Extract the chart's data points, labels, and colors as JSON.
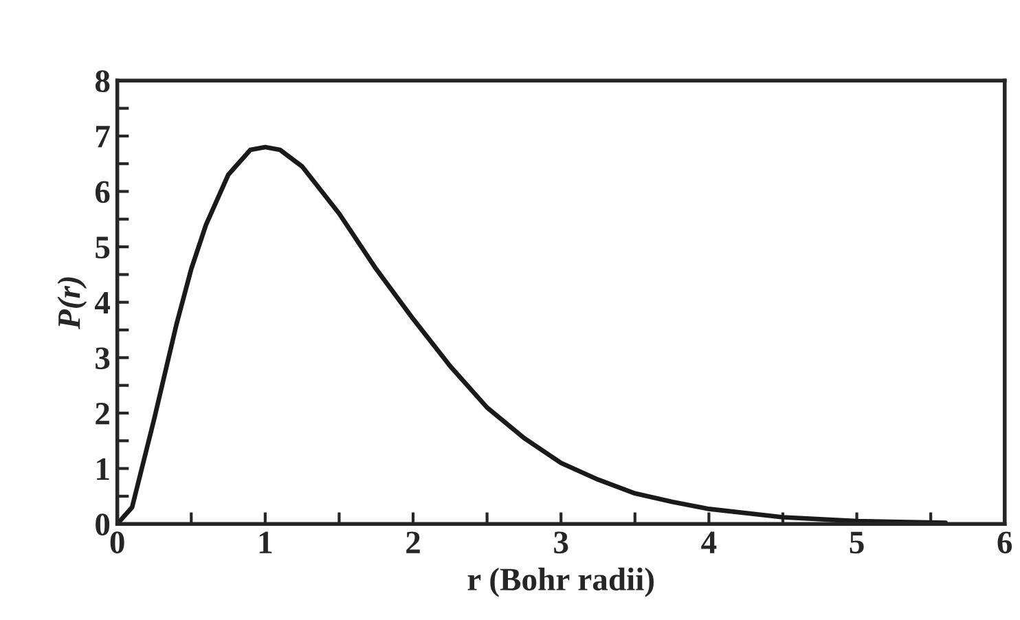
{
  "chart_data": {
    "type": "line",
    "xlabel": "r (Bohr radii)",
    "ylabel": "P(r)",
    "x": [
      0,
      0.1,
      0.25,
      0.4,
      0.5,
      0.6,
      0.75,
      0.9,
      1,
      1.1,
      1.25,
      1.5,
      1.75,
      2,
      2.25,
      2.5,
      2.75,
      3,
      3.25,
      3.5,
      3.75,
      4,
      4.5,
      5,
      5.6
    ],
    "series": [
      {
        "color": "#1a1a1a",
        "values": [
          0,
          0.3,
          1.9,
          3.6,
          4.6,
          5.4,
          6.3,
          6.75,
          6.8,
          6.75,
          6.45,
          5.6,
          4.6,
          3.7,
          2.85,
          2.1,
          1.55,
          1.1,
          0.8,
          0.55,
          0.4,
          0.27,
          0.12,
          0.05,
          0.02
        ]
      }
    ],
    "xlim": [
      0,
      6
    ],
    "ylim": [
      0,
      8
    ],
    "xticks": [
      0,
      {
        "value": 0.5,
        "label": null
      },
      1,
      {
        "value": 1.5,
        "label": null
      },
      2,
      {
        "value": 2.5,
        "label": null
      },
      3,
      {
        "value": 3.5,
        "label": null
      },
      4,
      {
        "value": 4.5,
        "label": null
      },
      5,
      {
        "value": 5.5,
        "label": null
      },
      6
    ],
    "yticks": [
      0,
      {
        "value": 0.5,
        "label": null
      },
      1,
      {
        "value": 1.5,
        "label": null
      },
      2,
      {
        "value": 2.5,
        "label": null
      },
      3,
      {
        "value": 3.5,
        "label": null
      },
      4,
      {
        "value": 4.5,
        "label": null
      },
      5,
      {
        "value": 5.5,
        "label": null
      },
      6,
      {
        "value": 6.5,
        "label": null
      },
      7,
      {
        "value": 7.5,
        "label": null
      },
      8
    ],
    "grid": false,
    "legend": false,
    "marker": "none",
    "line_style": "solid"
  }
}
